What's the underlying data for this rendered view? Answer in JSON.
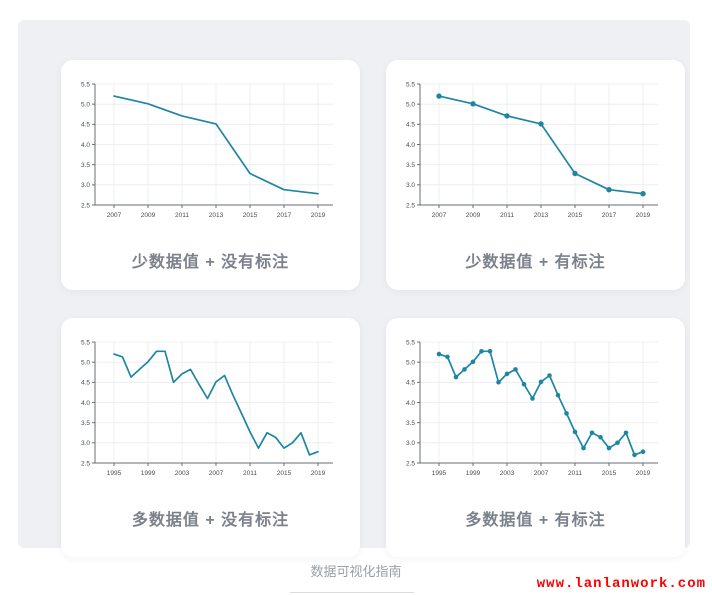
{
  "page": {
    "footer_caption": "数据可视化指南",
    "watermark": "www.lanlanwork.com",
    "colors": {
      "line": "#1e86a2",
      "panel_bg": "#eef0f4",
      "grid": "#e9ebef",
      "axis": "#6a6f75",
      "tick_label": "#474b50",
      "caption": "#7c828b",
      "watermark_red": "#fe0000"
    }
  },
  "chart_data": [
    {
      "type": "line",
      "title": "少数据值 + 没有标注",
      "markers": false,
      "x": [
        2007,
        2009,
        2011,
        2013,
        2015,
        2017,
        2019
      ],
      "values": [
        5.2,
        5.01,
        4.71,
        4.51,
        3.28,
        2.88,
        2.78
      ],
      "x_ticks": [
        2007,
        2009,
        2011,
        2013,
        2015,
        2017,
        2019
      ],
      "y_ticks": [
        2.5,
        3.0,
        3.5,
        4.0,
        4.5,
        5.0,
        5.5
      ],
      "ylim": [
        2.5,
        5.5
      ],
      "grid": true,
      "legend": "none",
      "xlabel": "",
      "ylabel": "",
      "line_color": "#1e86a2"
    },
    {
      "type": "line",
      "title": "少数据值 + 有标注",
      "markers": true,
      "x": [
        2007,
        2009,
        2011,
        2013,
        2015,
        2017,
        2019
      ],
      "values": [
        5.2,
        5.01,
        4.71,
        4.51,
        3.28,
        2.88,
        2.78
      ],
      "x_ticks": [
        2007,
        2009,
        2011,
        2013,
        2015,
        2017,
        2019
      ],
      "y_ticks": [
        2.5,
        3.0,
        3.5,
        4.0,
        4.5,
        5.0,
        5.5
      ],
      "ylim": [
        2.5,
        5.5
      ],
      "grid": true,
      "legend": "none",
      "xlabel": "",
      "ylabel": "",
      "line_color": "#1e86a2"
    },
    {
      "type": "line",
      "title": "多数据值 + 没有标注",
      "markers": false,
      "x": [
        1995,
        1996,
        1997,
        1998,
        1999,
        2000,
        2001,
        2002,
        2003,
        2004,
        2005,
        2006,
        2007,
        2008,
        2009,
        2010,
        2011,
        2012,
        2013,
        2014,
        2015,
        2016,
        2017,
        2018,
        2019
      ],
      "values": [
        5.2,
        5.13,
        4.63,
        4.82,
        5.01,
        5.27,
        5.27,
        4.5,
        4.71,
        4.82,
        4.45,
        4.1,
        4.51,
        4.67,
        4.18,
        3.73,
        3.27,
        2.87,
        3.25,
        3.14,
        2.87,
        3.0,
        3.25,
        2.7,
        2.78
      ],
      "x_ticks": [
        1995,
        1999,
        2003,
        2007,
        2011,
        2015,
        2019
      ],
      "y_ticks": [
        2.5,
        3.0,
        3.5,
        4.0,
        4.5,
        5.0,
        5.5
      ],
      "ylim": [
        2.5,
        5.5
      ],
      "grid": true,
      "legend": "none",
      "xlabel": "",
      "ylabel": "",
      "line_color": "#1e86a2"
    },
    {
      "type": "line",
      "title": "多数据值 + 有标注",
      "markers": true,
      "x": [
        1995,
        1996,
        1997,
        1998,
        1999,
        2000,
        2001,
        2002,
        2003,
        2004,
        2005,
        2006,
        2007,
        2008,
        2009,
        2010,
        2011,
        2012,
        2013,
        2014,
        2015,
        2016,
        2017,
        2018,
        2019
      ],
      "values": [
        5.2,
        5.13,
        4.63,
        4.82,
        5.01,
        5.27,
        5.27,
        4.5,
        4.71,
        4.82,
        4.45,
        4.1,
        4.51,
        4.67,
        4.18,
        3.73,
        3.27,
        2.87,
        3.25,
        3.14,
        2.87,
        3.0,
        3.25,
        2.7,
        2.78
      ],
      "x_ticks": [
        1995,
        1999,
        2003,
        2007,
        2011,
        2015,
        2019
      ],
      "y_ticks": [
        2.5,
        3.0,
        3.5,
        4.0,
        4.5,
        5.0,
        5.5
      ],
      "ylim": [
        2.5,
        5.5
      ],
      "grid": true,
      "legend": "none",
      "xlabel": "",
      "ylabel": "",
      "line_color": "#1e86a2"
    }
  ]
}
